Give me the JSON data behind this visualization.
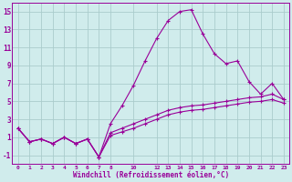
{
  "xlabel": "Windchill (Refroidissement éolien,°C)",
  "bg_color": "#d0ecec",
  "grid_color": "#aacccc",
  "line_color": "#990099",
  "line1_x": [
    0,
    1,
    2,
    3,
    4,
    5,
    6,
    7,
    8,
    9,
    10,
    11,
    12,
    13,
    14,
    15,
    16,
    17,
    18,
    19,
    20,
    21,
    22,
    23
  ],
  "line1_y": [
    2.0,
    0.5,
    0.8,
    0.3,
    1.0,
    0.3,
    0.8,
    -1.2,
    2.5,
    4.5,
    6.8,
    9.5,
    12.0,
    14.0,
    15.0,
    15.2,
    12.5,
    10.3,
    9.2,
    9.5,
    7.2,
    5.8,
    7.0,
    5.2
  ],
  "line2_x": [
    0,
    1,
    2,
    3,
    4,
    5,
    6,
    7,
    8,
    9,
    10,
    11,
    12,
    13,
    14,
    15,
    16,
    17,
    18,
    19,
    20,
    21,
    22,
    23
  ],
  "line2_y": [
    2.0,
    0.5,
    0.8,
    0.3,
    1.0,
    0.3,
    0.8,
    -1.2,
    1.5,
    2.0,
    2.5,
    3.0,
    3.5,
    4.0,
    4.3,
    4.5,
    4.6,
    4.8,
    5.0,
    5.2,
    5.4,
    5.5,
    5.8,
    5.2
  ],
  "line3_x": [
    0,
    1,
    2,
    3,
    4,
    5,
    6,
    7,
    8,
    9,
    10,
    11,
    12,
    13,
    14,
    15,
    16,
    17,
    18,
    19,
    20,
    21,
    22,
    23
  ],
  "line3_y": [
    2.0,
    0.5,
    0.8,
    0.3,
    1.0,
    0.3,
    0.8,
    -1.2,
    1.2,
    1.6,
    2.0,
    2.5,
    3.0,
    3.5,
    3.8,
    4.0,
    4.1,
    4.3,
    4.5,
    4.7,
    4.9,
    5.0,
    5.2,
    4.8
  ],
  "xtick_positions": [
    0,
    1,
    2,
    3,
    4,
    5,
    6,
    7,
    8,
    10,
    12,
    13,
    14,
    15,
    16,
    17,
    18,
    19,
    20,
    21,
    22,
    23
  ],
  "xtick_labels": [
    "0",
    "1",
    "2",
    "3",
    "4",
    "5",
    "6",
    "7",
    "8",
    "10",
    "12",
    "13",
    "14",
    "15",
    "16",
    "17",
    "18",
    "19",
    "20",
    "21",
    "22",
    "23"
  ],
  "ytick_positions": [
    -1,
    1,
    3,
    5,
    7,
    9,
    11,
    13,
    15
  ],
  "ytick_labels": [
    "-1",
    "1",
    "3",
    "5",
    "7",
    "9",
    "11",
    "13",
    "15"
  ],
  "xlim": [
    -0.5,
    23.5
  ],
  "ylim": [
    -2.0,
    16.0
  ]
}
